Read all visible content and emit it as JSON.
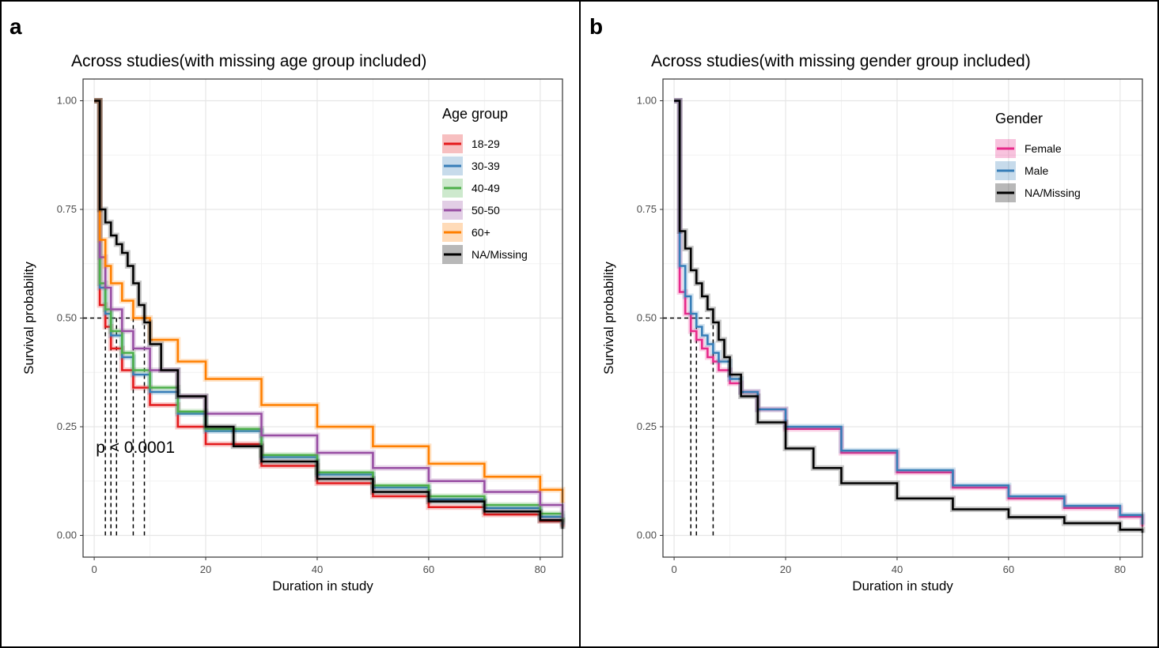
{
  "panels": [
    {
      "letter": "a"
    },
    {
      "letter": "b"
    }
  ],
  "chart_data": [
    {
      "type": "line",
      "subtype": "kaplan-meier step curves",
      "title": "Across studies(with missing age group included)",
      "xlabel": "Duration in study",
      "ylabel": "Survival probability",
      "xlim": [
        -2,
        84
      ],
      "ylim": [
        -0.05,
        1.05
      ],
      "xticks": [
        0,
        20,
        40,
        60,
        80
      ],
      "yticks": [
        "0.00",
        "0.25",
        "0.50",
        "0.75",
        "1.00"
      ],
      "grid": true,
      "legend": {
        "title": "Age group",
        "position": "top-right"
      },
      "annotation": "p < 0.0001",
      "median_line_at": 0.5,
      "medians": [
        2,
        3,
        3,
        4,
        7,
        9
      ],
      "series": [
        {
          "name": "18-29",
          "color": "#e41a1c",
          "x": [
            0,
            1,
            2,
            3,
            5,
            7,
            10,
            15,
            20,
            30,
            40,
            50,
            60,
            70,
            80,
            84
          ],
          "y": [
            1.0,
            0.53,
            0.48,
            0.43,
            0.38,
            0.34,
            0.3,
            0.25,
            0.21,
            0.16,
            0.12,
            0.09,
            0.065,
            0.048,
            0.033,
            0.02
          ]
        },
        {
          "name": "30-39",
          "color": "#377eb8",
          "x": [
            0,
            1,
            2,
            3,
            5,
            7,
            10,
            15,
            20,
            30,
            40,
            50,
            60,
            70,
            80,
            84
          ],
          "y": [
            1.0,
            0.57,
            0.51,
            0.46,
            0.41,
            0.37,
            0.33,
            0.28,
            0.24,
            0.18,
            0.14,
            0.11,
            0.083,
            0.063,
            0.043,
            0.025
          ]
        },
        {
          "name": "40-49",
          "color": "#4daf4a",
          "x": [
            0,
            1,
            2,
            3,
            5,
            7,
            10,
            15,
            20,
            30,
            40,
            50,
            60,
            70,
            80,
            84
          ],
          "y": [
            1.0,
            0.58,
            0.52,
            0.47,
            0.42,
            0.38,
            0.34,
            0.285,
            0.245,
            0.185,
            0.145,
            0.115,
            0.09,
            0.07,
            0.05,
            0.03
          ]
        },
        {
          "name": "50-50",
          "color": "#984ea3",
          "x": [
            0,
            1,
            2,
            3,
            5,
            7,
            10,
            15,
            20,
            30,
            40,
            50,
            60,
            70,
            80,
            84
          ],
          "y": [
            1.0,
            0.64,
            0.57,
            0.52,
            0.47,
            0.43,
            0.38,
            0.32,
            0.28,
            0.23,
            0.19,
            0.155,
            0.125,
            0.1,
            0.07,
            0.04
          ]
        },
        {
          "name": "60+",
          "color": "#ff7f00",
          "x": [
            0,
            1,
            2,
            3,
            5,
            7,
            10,
            15,
            20,
            30,
            40,
            50,
            60,
            70,
            80,
            84
          ],
          "y": [
            1.0,
            0.68,
            0.62,
            0.58,
            0.54,
            0.5,
            0.45,
            0.4,
            0.36,
            0.3,
            0.25,
            0.205,
            0.165,
            0.135,
            0.105,
            0.075
          ]
        },
        {
          "name": "NA/Missing",
          "color": "#000000",
          "x": [
            0,
            1,
            2,
            3,
            4,
            5,
            6,
            7,
            8,
            9,
            10,
            12,
            15,
            20,
            25,
            30,
            40,
            50,
            60,
            70,
            80,
            84
          ],
          "y": [
            1.0,
            0.75,
            0.72,
            0.69,
            0.67,
            0.65,
            0.62,
            0.58,
            0.53,
            0.49,
            0.44,
            0.38,
            0.32,
            0.25,
            0.205,
            0.17,
            0.13,
            0.1,
            0.078,
            0.055,
            0.035,
            0.015
          ]
        }
      ]
    },
    {
      "type": "line",
      "subtype": "kaplan-meier step curves",
      "title": "Across studies(with missing gender group included)",
      "xlabel": "Duration in study",
      "ylabel": "Survival probability",
      "xlim": [
        -2,
        84
      ],
      "ylim": [
        -0.05,
        1.05
      ],
      "xticks": [
        0,
        20,
        40,
        60,
        80
      ],
      "yticks": [
        "0.00",
        "0.25",
        "0.50",
        "0.75",
        "1.00"
      ],
      "grid": true,
      "legend": {
        "title": "Gender",
        "position": "top-right"
      },
      "median_line_at": 0.5,
      "medians": [
        3,
        4,
        7
      ],
      "series": [
        {
          "name": "Female",
          "color": "#e7298a",
          "x": [
            0,
            1,
            2,
            3,
            4,
            5,
            6,
            7,
            8,
            10,
            12,
            15,
            20,
            30,
            40,
            50,
            60,
            70,
            80,
            84
          ],
          "y": [
            1.0,
            0.56,
            0.51,
            0.47,
            0.45,
            0.43,
            0.41,
            0.4,
            0.38,
            0.35,
            0.33,
            0.29,
            0.245,
            0.19,
            0.145,
            0.11,
            0.085,
            0.063,
            0.043,
            0.02
          ]
        },
        {
          "name": "Male",
          "color": "#377eb8",
          "x": [
            0,
            1,
            2,
            3,
            4,
            5,
            6,
            7,
            8,
            10,
            12,
            15,
            20,
            30,
            40,
            50,
            60,
            70,
            80,
            84
          ],
          "y": [
            1.0,
            0.62,
            0.55,
            0.51,
            0.48,
            0.46,
            0.44,
            0.42,
            0.4,
            0.36,
            0.33,
            0.29,
            0.25,
            0.195,
            0.15,
            0.115,
            0.09,
            0.068,
            0.047,
            0.025
          ]
        },
        {
          "name": "NA/Missing",
          "color": "#000000",
          "x": [
            0,
            1,
            2,
            3,
            4,
            5,
            6,
            7,
            8,
            9,
            10,
            12,
            15,
            20,
            25,
            30,
            40,
            50,
            60,
            70,
            80,
            84
          ],
          "y": [
            1.0,
            0.7,
            0.66,
            0.61,
            0.58,
            0.55,
            0.52,
            0.49,
            0.45,
            0.41,
            0.37,
            0.32,
            0.26,
            0.2,
            0.155,
            0.12,
            0.085,
            0.06,
            0.042,
            0.028,
            0.013,
            0.006
          ]
        }
      ]
    }
  ]
}
